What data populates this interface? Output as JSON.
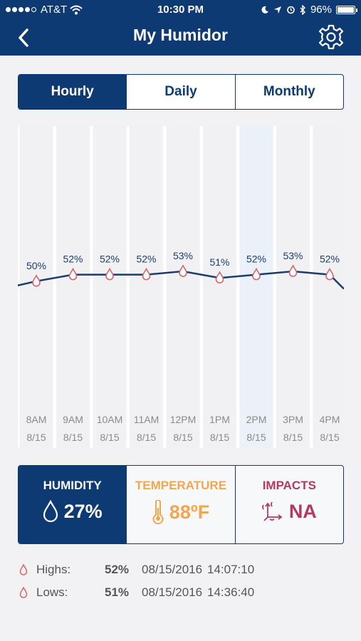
{
  "status": {
    "carrier": "AT&T",
    "time": "10:30 PM",
    "battery": "96%"
  },
  "nav": {
    "title": "My Humidor",
    "back_icon": "chevron-left-icon",
    "settings_icon": "gear-icon"
  },
  "tabs": [
    {
      "label": "Hourly",
      "active": true
    },
    {
      "label": "Daily",
      "active": false
    },
    {
      "label": "Monthly",
      "active": false
    }
  ],
  "chart_data": {
    "type": "line",
    "x": [
      "8AM",
      "9AM",
      "10AM",
      "11AM",
      "12PM",
      "1PM",
      "2PM",
      "3PM",
      "4PM"
    ],
    "dates": [
      "8/15",
      "8/15",
      "8/15",
      "8/15",
      "8/15",
      "8/15",
      "8/15",
      "8/15",
      "8/15"
    ],
    "values": [
      50,
      52,
      52,
      52,
      53,
      51,
      52,
      53,
      52
    ],
    "value_labels": [
      "50%",
      "52%",
      "52%",
      "52%",
      "53%",
      "51%",
      "52%",
      "53%",
      "52%"
    ],
    "highlighted_index": 6,
    "line_color": "#1a3d6b",
    "marker_color": "#d9646a",
    "band_color": "#f1f1f3",
    "highlight_color": "#eaf1f9"
  },
  "cards": {
    "humidity": {
      "label": "HUMIDITY",
      "value": "27%",
      "icon": "droplet-icon",
      "color": "#ffffff"
    },
    "temperature": {
      "label": "TEMPERATURE",
      "value": "88ºF",
      "icon": "thermometer-icon",
      "color": "#f5a64d"
    },
    "impacts": {
      "label": "IMPACTS",
      "value": "NA",
      "icon": "axes-icon",
      "color": "#b23a60"
    }
  },
  "stats": {
    "highs": {
      "label": "Highs:",
      "value": "52%",
      "date": "08/15/2016",
      "time": "14:07:10"
    },
    "lows": {
      "label": "Lows:",
      "value": "51%",
      "date": "08/15/2016",
      "time": "14:36:40"
    }
  },
  "colors": {
    "brand": "#0d3a73",
    "drop": "#d9646a"
  }
}
